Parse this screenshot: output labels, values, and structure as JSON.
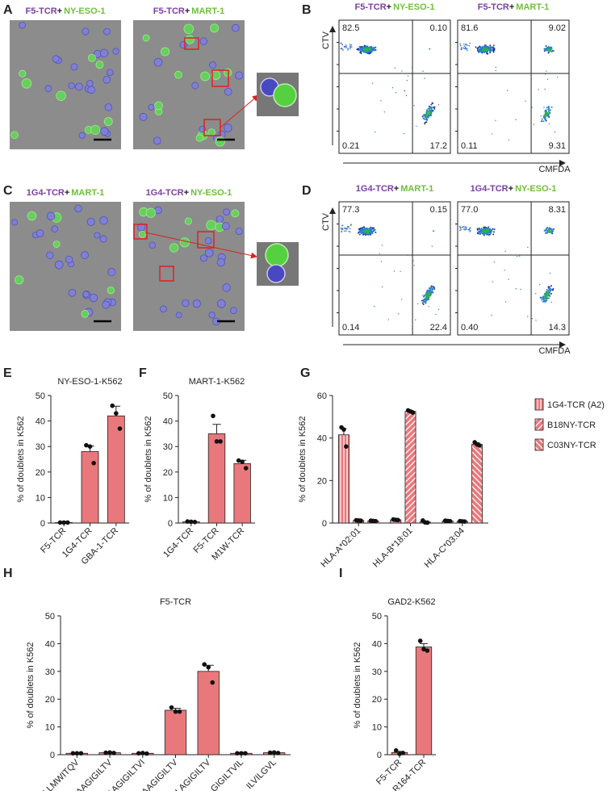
{
  "panel_labels": [
    "A",
    "B",
    "C",
    "D",
    "E",
    "F",
    "G",
    "H",
    "I"
  ],
  "micrographs": {
    "A": [
      {
        "tcr": "F5-TCR",
        "sep": "+",
        "antigen": "NY-ESO-1"
      },
      {
        "tcr": "F5-TCR",
        "sep": "+",
        "antigen": "MART-1"
      }
    ],
    "C": [
      {
        "tcr": "1G4-TCR",
        "sep": "+",
        "antigen": "MART-1"
      },
      {
        "tcr": "1G4-TCR",
        "sep": "+",
        "antigen": "NY-ESO-1"
      }
    ]
  },
  "flow": {
    "x_label": "CMFDA",
    "y_label": "CTV",
    "B": [
      {
        "title": {
          "tcr": "F5-TCR",
          "sep": "+",
          "antigen": "NY-ESO-1"
        },
        "quadrants": [
          82.5,
          {
            "value": 0.1,
            "label": "0.10"
          },
          0.21,
          17.2
        ]
      },
      {
        "title": {
          "tcr": "F5-TCR",
          "sep": "+",
          "antigen": "MART-1"
        },
        "quadrants": [
          81.6,
          9.02,
          0.11,
          9.31
        ]
      }
    ],
    "D": [
      {
        "title": {
          "tcr": "1G4-TCR",
          "sep": "+",
          "antigen": "MART-1"
        },
        "quadrants": [
          77.3,
          0.15,
          0.14,
          22.4
        ]
      },
      {
        "title": {
          "tcr": "1G4-TCR",
          "sep": "+",
          "antigen": "NY-ESO-1"
        },
        "quadrants": [
          {
            "value": 77,
            "label": "77.0"
          },
          8.31,
          {
            "value": 0.4,
            "label": "0.40"
          },
          14.3
        ]
      }
    ]
  },
  "chart_data": [
    {
      "type": "bar",
      "title": "NY-ESO-1-K562",
      "y_label": "% of doublets in K562",
      "categories": [
        "F5-TCR",
        "1G4-TCR",
        "GBA-1-TCR"
      ],
      "values": [
        0.2,
        28,
        42
      ],
      "errors": [
        0.1,
        2.2,
        3.8
      ],
      "points": [
        [
          0.2,
          0.2,
          0.2
        ],
        [
          30.5,
          30,
          23.5
        ],
        [
          46,
          43,
          37
        ]
      ],
      "color": "#e8787b",
      "ylim": [
        0,
        50
      ],
      "yticks": [
        0,
        10,
        20,
        30,
        40,
        50
      ]
    },
    {
      "type": "bar",
      "title": "MART-1-K562",
      "y_label": "% of doublets in K562",
      "categories": [
        "1G4-TCR",
        "F5-TCR",
        "M1W-TCR"
      ],
      "values": [
        0.5,
        35,
        23.3
      ],
      "errors": [
        0.2,
        3.7,
        1.3
      ],
      "points": [
        [
          0.6,
          0.5,
          0.4
        ],
        [
          42,
          32,
          32
        ],
        [
          24.5,
          24,
          21.5
        ]
      ],
      "color": "#e8787b",
      "ylim": [
        0,
        50
      ],
      "yticks": [
        0,
        10,
        20,
        30,
        40,
        50
      ]
    },
    {
      "type": "grouped-bar",
      "y_label": "% of doublets in K562",
      "categories": [
        "HLA-A*02:01",
        "HLA-B*18:01",
        "HLA-C*03:04"
      ],
      "series": [
        {
          "name": "1G4-TCR (A2)",
          "color": "#e8787b",
          "hatch": "vertical",
          "values": [
            41.5,
            1.5,
            1
          ],
          "errors": [
            3,
            0.3,
            0.2
          ],
          "points": [
            [
              45,
              44,
              36
            ],
            [
              1.7,
              1.5,
              1.4
            ],
            [
              1.1,
              1,
              0.9
            ]
          ]
        },
        {
          "name": "B18NY-TCR",
          "color": "#e8787b",
          "hatch": "diagonal",
          "values": [
            1.2,
            52.5,
            0.8
          ],
          "errors": [
            0.2,
            0.5,
            0.2
          ],
          "points": [
            [
              1.3,
              1.2,
              1.1
            ],
            [
              53,
              52.5,
              52
            ],
            [
              0.9,
              0.8,
              0.7
            ]
          ]
        },
        {
          "name": "C03NY-TCR",
          "color": "#e8787b",
          "hatch": "back-diagonal",
          "values": [
            1,
            0.5,
            37
          ],
          "errors": [
            0.2,
            0.2,
            0.8
          ],
          "points": [
            [
              1.1,
              1,
              0.9
            ],
            [
              1.2,
              0.3,
              0.2
            ],
            [
              38,
              37,
              36.5
            ]
          ]
        }
      ],
      "legend": "upper-right",
      "ylim": [
        0,
        60
      ],
      "yticks": [
        0,
        20,
        40,
        60
      ]
    },
    {
      "type": "bar",
      "title": "F5-TCR",
      "y_label": "% of doublets in K562",
      "categories": [
        "SLLMWITQV",
        "AAGIGILTV",
        "AAGIGILTVI",
        "EAAGIGILTV",
        "ELAGIGILTV",
        "GIGILTVIL",
        "ILVILGVL"
      ],
      "values": [
        0.5,
        0.7,
        0.5,
        16,
        30,
        0.5,
        0.7
      ],
      "errors": [
        0.1,
        0.2,
        0.1,
        0.7,
        2.2,
        0.1,
        0.1
      ],
      "points": [
        [
          0.5,
          0.5,
          0.5
        ],
        [
          0.7,
          0.8,
          0.6
        ],
        [
          0.5,
          0.6,
          0.4
        ],
        [
          17,
          15.5,
          15.5
        ],
        [
          32.5,
          31.5,
          26
        ],
        [
          0.5,
          0.5,
          0.5
        ],
        [
          0.7,
          0.8,
          0.6
        ]
      ],
      "color": "#e8787b",
      "ylim": [
        0,
        50
      ],
      "yticks": [
        0,
        10,
        20,
        30,
        40,
        50
      ]
    },
    {
      "type": "bar",
      "title": "GAD2-K562",
      "y_label": "% of doublets in K562",
      "categories": [
        "F5-TCR",
        "R164-TCR"
      ],
      "values": [
        0.8,
        38.8
      ],
      "errors": [
        0.4,
        1.2
      ],
      "points": [
        [
          1.5,
          0.3,
          0.6
        ],
        [
          41,
          38,
          37.5
        ]
      ],
      "color": "#e8787b",
      "ylim": [
        0,
        50
      ],
      "yticks": [
        0,
        10,
        20,
        30,
        40,
        50
      ]
    }
  ]
}
